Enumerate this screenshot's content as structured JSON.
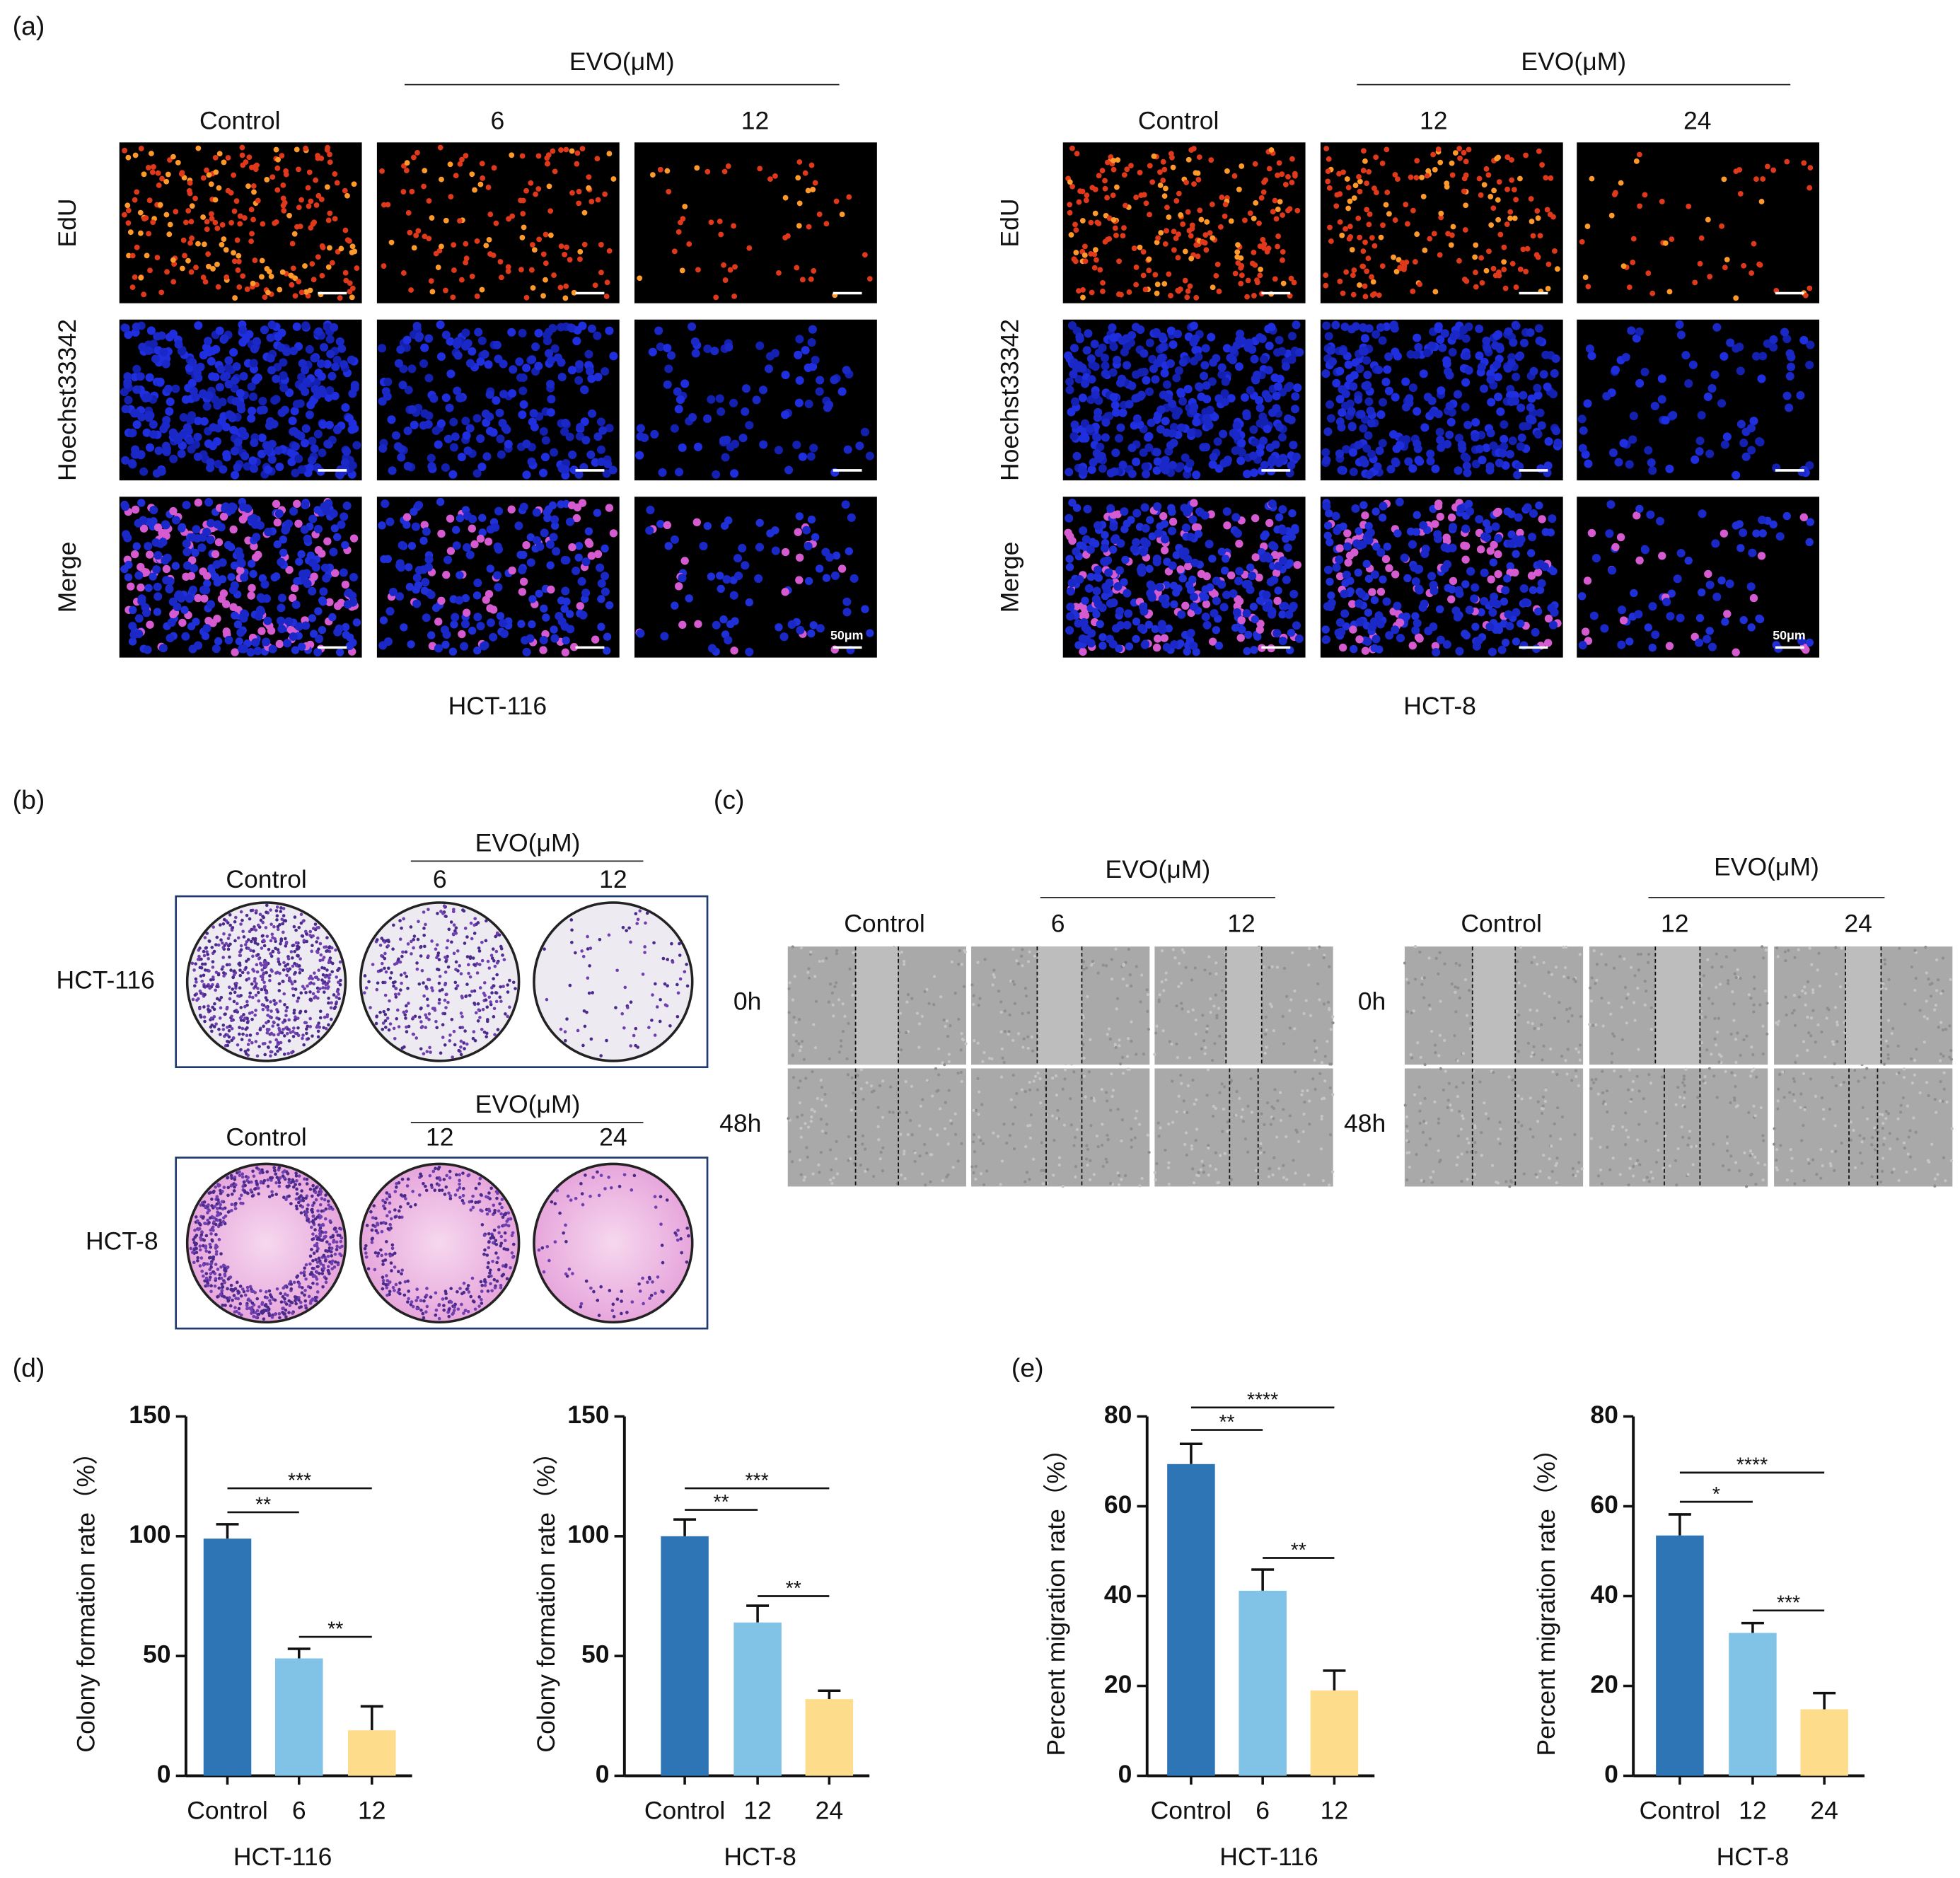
{
  "panel_a": {
    "label": "(a)",
    "groups": [
      {
        "header": "EVO(μM)",
        "columns": [
          "Control",
          "6",
          "12"
        ],
        "rows": [
          "EdU",
          "Hoechst33342",
          "Merge"
        ],
        "scale_bar": "50μm",
        "cell_line": "HCT-116"
      },
      {
        "header": "EVO(μM)",
        "columns": [
          "Control",
          "12",
          "24"
        ],
        "rows": [
          "EdU",
          "Hoechst33342",
          "Merge"
        ],
        "scale_bar": "50μm",
        "cell_line": "HCT-8"
      }
    ]
  },
  "panel_b": {
    "label": "(b)",
    "groups": [
      {
        "header": "EVO(μM)",
        "columns": [
          "Control",
          "6",
          "12"
        ],
        "cell_line": "HCT-116"
      },
      {
        "header": "EVO(μM)",
        "columns": [
          "Control",
          "12",
          "24"
        ],
        "cell_line": "HCT-8"
      }
    ]
  },
  "panel_c": {
    "label": "(c)",
    "groups": [
      {
        "header": "EVO(μM)",
        "columns": [
          "Control",
          "6",
          "12"
        ],
        "rows": [
          "0h",
          "48h"
        ]
      },
      {
        "header": "EVO(μM)",
        "columns": [
          "Control",
          "12",
          "24"
        ],
        "rows": [
          "0h",
          "48h"
        ]
      }
    ]
  },
  "panel_d_label": "(d)",
  "panel_e_label": "(e)",
  "chart_data": [
    {
      "type": "bar",
      "ylabel": "Colony formation rate（%）",
      "xlabel": "HCT-116",
      "categories": [
        "Control",
        "6",
        "12"
      ],
      "values": [
        99,
        49,
        19
      ],
      "errors": [
        6,
        4,
        10
      ],
      "colors": [
        "#2e75b6",
        "#80c3e6",
        "#fddc8c"
      ],
      "ylim": [
        0,
        150
      ],
      "yticks": [
        0,
        50,
        100,
        150
      ],
      "annotations": [
        {
          "text": "**",
          "from": "Control",
          "to": "6",
          "y": 110
        },
        {
          "text": "***",
          "from": "Control",
          "to": "12",
          "y": 120
        },
        {
          "text": "**",
          "from": "6",
          "to": "12",
          "y": 58
        }
      ]
    },
    {
      "type": "bar",
      "ylabel": "Colony formation rate（%）",
      "xlabel": "HCT-8",
      "categories": [
        "Control",
        "12",
        "24"
      ],
      "values": [
        100,
        64,
        32
      ],
      "errors": [
        7,
        7,
        3.5
      ],
      "colors": [
        "#2e75b6",
        "#80c3e6",
        "#fddc8c"
      ],
      "ylim": [
        0,
        150
      ],
      "yticks": [
        0,
        50,
        100,
        150
      ],
      "annotations": [
        {
          "text": "**",
          "from": "Control",
          "to": "12",
          "y": 111
        },
        {
          "text": "***",
          "from": "Control",
          "to": "24",
          "y": 120
        },
        {
          "text": "**",
          "from": "12",
          "to": "24",
          "y": 75
        }
      ]
    },
    {
      "type": "bar",
      "ylabel": "Percent migration rate（%）",
      "xlabel": "HCT-116",
      "categories": [
        "Control",
        "6",
        "12"
      ],
      "values": [
        69.4,
        41.2,
        19
      ],
      "errors": [
        4.5,
        4.7,
        4.4
      ],
      "colors": [
        "#2e75b6",
        "#80c3e6",
        "#fddc8c"
      ],
      "ylim": [
        0,
        80
      ],
      "yticks": [
        0,
        20,
        40,
        60,
        80
      ],
      "annotations": [
        {
          "text": "**",
          "from": "Control",
          "to": "6",
          "y": 77
        },
        {
          "text": "****",
          "from": "Control",
          "to": "12",
          "y": 82
        },
        {
          "text": "**",
          "from": "6",
          "to": "12",
          "y": 48.5
        }
      ]
    },
    {
      "type": "bar",
      "ylabel": "Percent migration rate（%）",
      "xlabel": "HCT-8",
      "categories": [
        "Control",
        "12",
        "24"
      ],
      "values": [
        53.5,
        31.8,
        14.8
      ],
      "errors": [
        4.7,
        2.2,
        3.6
      ],
      "colors": [
        "#2e75b6",
        "#80c3e6",
        "#fddc8c"
      ],
      "ylim": [
        0,
        80
      ],
      "yticks": [
        0,
        20,
        40,
        60,
        80
      ],
      "annotations": [
        {
          "text": "*",
          "from": "Control",
          "to": "12",
          "y": 61
        },
        {
          "text": "****",
          "from": "Control",
          "to": "24",
          "y": 67.5
        },
        {
          "text": "***",
          "from": "12",
          "to": "24",
          "y": 36.8
        }
      ]
    }
  ]
}
